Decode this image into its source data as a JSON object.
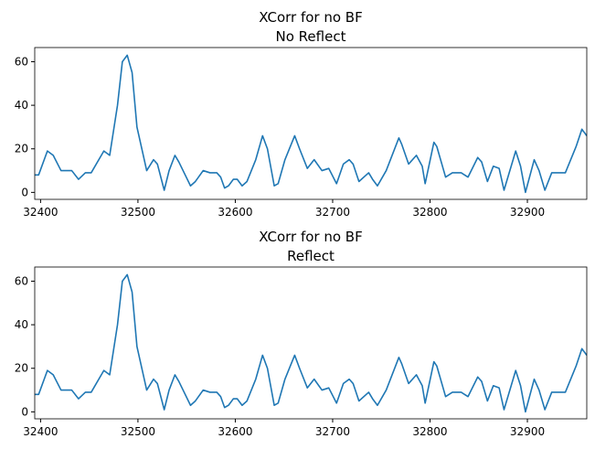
{
  "chart_data": [
    {
      "type": "line",
      "title": "XCorr for no BF",
      "subtitle": "No Reflect",
      "x": [
        32394,
        32398,
        32407,
        32413,
        32421,
        32426,
        32432,
        32439,
        32446,
        32452,
        32465,
        32471,
        32479,
        32484,
        32489,
        32494,
        32499,
        32509,
        32516,
        32520,
        32527,
        32532,
        32538,
        32542,
        32554,
        32559,
        32567,
        32574,
        32581,
        32585,
        32589,
        32593,
        32598,
        32602,
        32607,
        32612,
        32621,
        32628,
        32633,
        32640,
        32644,
        32651,
        32661,
        32666,
        32674,
        32681,
        32689,
        32696,
        32704,
        32711,
        32717,
        32721,
        32727,
        32737,
        32741,
        32746,
        32755,
        32768,
        32771,
        32778,
        32786,
        32792,
        32795,
        32804,
        32807,
        32816,
        32823,
        32832,
        32839,
        32849,
        32853,
        32859,
        32865,
        32871,
        32876,
        32888,
        32893,
        32898,
        32907,
        32912,
        32918,
        32925,
        32935,
        32939,
        32950,
        32956,
        32961
      ],
      "series": [
        {
          "name": null,
          "color": "#1f77b4",
          "values": [
            8,
            8,
            19,
            17,
            10,
            10,
            10,
            6,
            9,
            9,
            19,
            17,
            40,
            60,
            63,
            55,
            30,
            10,
            15,
            13,
            1,
            10,
            17,
            14,
            3,
            5,
            10,
            9,
            9,
            7,
            2,
            3,
            6,
            6,
            3,
            5,
            15,
            26,
            20,
            3,
            4,
            15,
            26,
            20,
            11,
            15,
            10,
            11,
            4,
            13,
            15,
            13,
            5,
            9,
            6,
            3,
            10,
            25,
            22,
            13,
            17,
            12,
            4,
            23,
            21,
            7,
            9,
            9,
            7,
            16,
            14,
            5,
            12,
            11,
            1,
            19,
            12,
            0,
            15,
            10,
            1,
            9,
            9,
            9,
            21,
            29,
            26
          ]
        }
      ],
      "xlim": [
        32394,
        32961
      ],
      "xticks": [
        32400,
        32500,
        32600,
        32700,
        32800,
        32900
      ],
      "ylim": [
        -3.2,
        66.5
      ],
      "yticks": [
        0,
        20,
        40,
        60
      ]
    },
    {
      "type": "line",
      "title": "XCorr for no BF",
      "subtitle": "Reflect",
      "x": [
        32394,
        32398,
        32407,
        32413,
        32421,
        32426,
        32432,
        32439,
        32446,
        32452,
        32465,
        32471,
        32479,
        32484,
        32489,
        32494,
        32499,
        32509,
        32516,
        32520,
        32527,
        32532,
        32538,
        32542,
        32554,
        32559,
        32567,
        32574,
        32581,
        32585,
        32589,
        32593,
        32598,
        32602,
        32607,
        32612,
        32621,
        32628,
        32633,
        32640,
        32644,
        32651,
        32661,
        32666,
        32674,
        32681,
        32689,
        32696,
        32704,
        32711,
        32717,
        32721,
        32727,
        32737,
        32741,
        32746,
        32755,
        32768,
        32771,
        32778,
        32786,
        32792,
        32795,
        32804,
        32807,
        32816,
        32823,
        32832,
        32839,
        32849,
        32853,
        32859,
        32865,
        32871,
        32876,
        32888,
        32893,
        32898,
        32907,
        32912,
        32918,
        32925,
        32935,
        32939,
        32950,
        32956,
        32961
      ],
      "series": [
        {
          "name": null,
          "color": "#1f77b4",
          "values": [
            8,
            8,
            19,
            17,
            10,
            10,
            10,
            6,
            9,
            9,
            19,
            17,
            40,
            60,
            63,
            55,
            30,
            10,
            15,
            13,
            1,
            10,
            17,
            14,
            3,
            5,
            10,
            9,
            9,
            7,
            2,
            3,
            6,
            6,
            3,
            5,
            15,
            26,
            20,
            3,
            4,
            15,
            26,
            20,
            11,
            15,
            10,
            11,
            4,
            13,
            15,
            13,
            5,
            9,
            6,
            3,
            10,
            25,
            22,
            13,
            17,
            12,
            4,
            23,
            21,
            7,
            9,
            9,
            7,
            16,
            14,
            5,
            12,
            11,
            1,
            19,
            12,
            0,
            15,
            10,
            1,
            9,
            9,
            9,
            21,
            29,
            26
          ]
        }
      ],
      "xlim": [
        32394,
        32961
      ],
      "xticks": [
        32400,
        32500,
        32600,
        32700,
        32800,
        32900
      ],
      "ylim": [
        -3.2,
        66.5
      ],
      "yticks": [
        0,
        20,
        40,
        60
      ]
    }
  ]
}
